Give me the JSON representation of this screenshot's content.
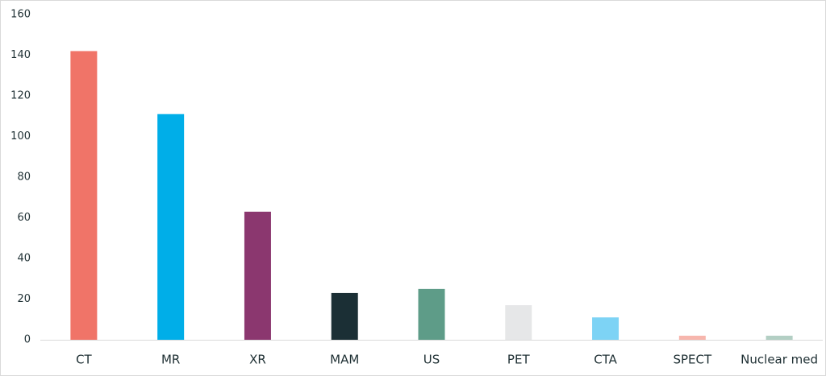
{
  "chart_data": {
    "type": "bar",
    "categories": [
      "CT",
      "MR",
      "XR",
      "MAM",
      "US",
      "PET",
      "CTA",
      "SPECT",
      "Nuclear med"
    ],
    "values": [
      142,
      111,
      63,
      23,
      25,
      17,
      11,
      2,
      2
    ],
    "colors": [
      "#f07468",
      "#00aee8",
      "#8b376f",
      "#1b2f35",
      "#5e9c88",
      "#e6e7e8",
      "#7dd3f5",
      "#f7b6ad",
      "#b3cfc4"
    ],
    "ylim": [
      0,
      160
    ],
    "yticks": [
      0,
      20,
      40,
      60,
      80,
      100,
      120,
      140,
      160
    ],
    "grid": false
  }
}
